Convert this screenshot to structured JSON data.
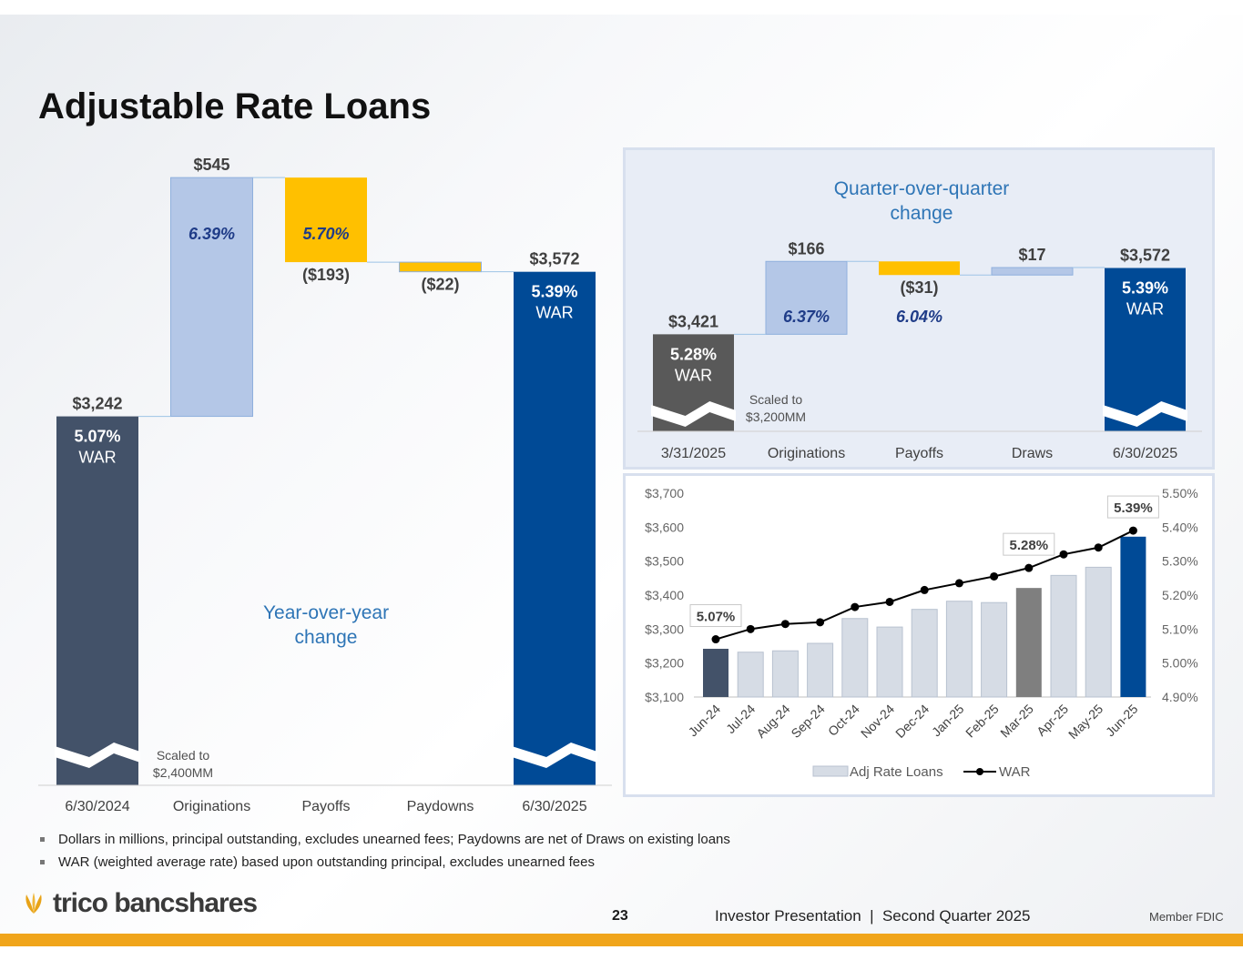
{
  "slide": {
    "title": "Adjustable Rate Loans",
    "notes": [
      "Dollars in millions, principal outstanding, excludes unearned fees; Paydowns are net of Draws on existing loans",
      "WAR (weighted average rate) based upon outstanding principal, excludes unearned fees"
    ],
    "page_number": "23",
    "presentation": "Investor Presentation  |  Second Quarter 2025",
    "company": "trico bancshares",
    "member": "Member FDIC"
  },
  "colors": {
    "dark_slate": "#435269",
    "light_blue": "#b4c7e7",
    "gold": "#ffc000",
    "navy": "#004a96",
    "gray": "#7f7f7f",
    "pale_bar": "#d6dce5",
    "accent_text": "#1f3c88",
    "logo_gold": "#e8a317"
  },
  "chart_data": [
    {
      "type": "bar",
      "subtype": "waterfall",
      "annotation": "Year-over-year change",
      "categories": [
        "6/30/2024",
        "Originations",
        "Payoffs",
        "Paydowns",
        "6/30/2025"
      ],
      "values": [
        3242,
        545,
        -193,
        -22,
        3572
      ],
      "value_labels": [
        "$3,242",
        "$545",
        "($193)",
        "($22)",
        "$3,572"
      ],
      "rate_labels": [
        "5.07%",
        "6.39%",
        "5.70%",
        "",
        "5.39%"
      ],
      "war_label": "WAR",
      "scale_note": "Scaled to $2,400MM",
      "scale_base": 2400
    },
    {
      "type": "bar",
      "subtype": "waterfall",
      "annotation": "Quarter-over-quarter change",
      "categories": [
        "3/31/2025",
        "Originations",
        "Payoffs",
        "Draws",
        "6/30/2025"
      ],
      "values": [
        3421,
        166,
        -31,
        17,
        3572
      ],
      "value_labels": [
        "$3,421",
        "$166",
        "($31)",
        "$17",
        "$3,572"
      ],
      "rate_labels": [
        "5.28%",
        "6.37%",
        "6.04%",
        "",
        "5.39%"
      ],
      "war_label": "WAR",
      "scale_note": "Scaled to $3,200MM",
      "scale_base": 3200
    },
    {
      "type": "bar",
      "subtype": "combo-bar-line",
      "categories": [
        "Jun-24",
        "Jul-24",
        "Aug-24",
        "Sep-24",
        "Oct-24",
        "Nov-24",
        "Dec-24",
        "Jan-25",
        "Feb-25",
        "Mar-25",
        "Apr-25",
        "May-25",
        "Jun-25"
      ],
      "series": [
        {
          "name": "Adj Rate Loans",
          "values": [
            3242,
            3232,
            3236,
            3258,
            3331,
            3306,
            3358,
            3382,
            3378,
            3421,
            3458,
            3482,
            3572
          ]
        },
        {
          "name": "WAR",
          "type": "line",
          "axis": "right",
          "values": [
            5.07,
            5.1,
            5.115,
            5.12,
            5.165,
            5.18,
            5.215,
            5.235,
            5.255,
            5.28,
            5.32,
            5.34,
            5.39
          ]
        }
      ],
      "point_labels": [
        {
          "index": 0,
          "text": "5.07%"
        },
        {
          "index": 9,
          "text": "5.28%"
        },
        {
          "index": 12,
          "text": "5.39%"
        }
      ],
      "y_left": {
        "range": [
          3100,
          3700
        ],
        "ticks": [
          "$3,100",
          "$3,200",
          "$3,300",
          "$3,400",
          "$3,500",
          "$3,600",
          "$3,700"
        ]
      },
      "y_right": {
        "range": [
          4.9,
          5.5
        ],
        "ticks": [
          "4.90%",
          "5.00%",
          "5.10%",
          "5.20%",
          "5.30%",
          "5.40%",
          "5.50%"
        ]
      },
      "legend": {
        "placement": "bottom"
      },
      "grid": false
    }
  ]
}
